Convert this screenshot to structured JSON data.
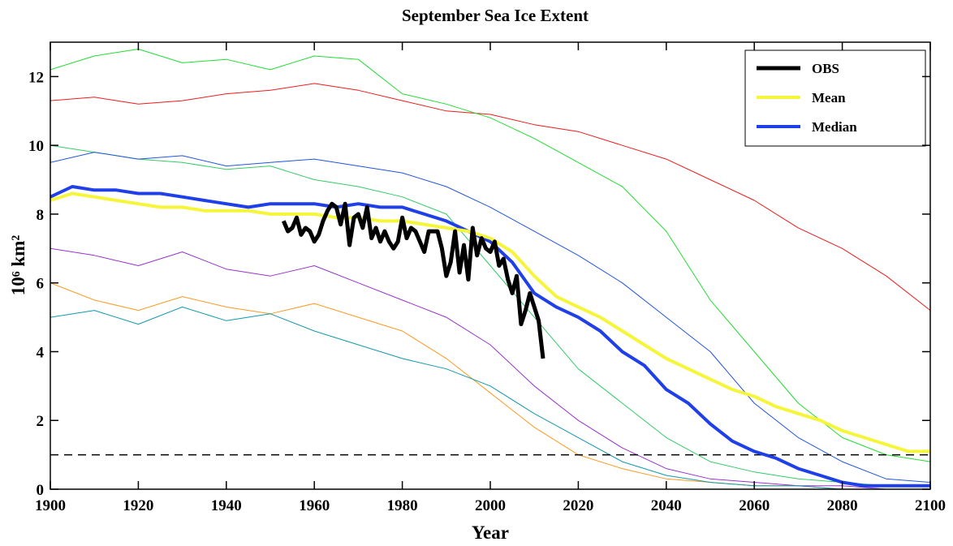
{
  "chart_data": {
    "type": "line",
    "title": "September Sea Ice Extent",
    "x_label": "Year",
    "y_label": "10⁶ km²",
    "xlim": [
      1900,
      2100
    ],
    "xticks": [
      1900,
      1920,
      1940,
      1960,
      1980,
      2000,
      2020,
      2040,
      2060,
      2080,
      2100
    ],
    "ylim": [
      0,
      13
    ],
    "yticks": [
      0,
      2,
      4,
      6,
      8,
      10,
      12
    ],
    "grid": false,
    "legend": "upper right",
    "reference_line": 1,
    "series": [
      {
        "name": "OBS",
        "color": "#000000",
        "linewidth": 5,
        "x": [
          1953,
          1954,
          1955,
          1956,
          1957,
          1958,
          1959,
          1960,
          1961,
          1962,
          1963,
          1964,
          1965,
          1966,
          1967,
          1968,
          1969,
          1970,
          1971,
          1972,
          1973,
          1974,
          1975,
          1976,
          1977,
          1978,
          1979,
          1980,
          1981,
          1982,
          1983,
          1984,
          1985,
          1986,
          1987,
          1988,
          1989,
          1990,
          1991,
          1992,
          1993,
          1994,
          1995,
          1996,
          1997,
          1998,
          1999,
          2000,
          2001,
          2002,
          2003,
          2004,
          2005,
          2006,
          2007,
          2008,
          2009,
          2010,
          2011,
          2012
        ],
        "values": [
          7.8,
          7.5,
          7.6,
          7.9,
          7.4,
          7.6,
          7.5,
          7.2,
          7.4,
          7.8,
          8.1,
          8.3,
          8.2,
          7.7,
          8.3,
          7.1,
          7.9,
          8.0,
          7.6,
          8.2,
          7.3,
          7.6,
          7.2,
          7.5,
          7.2,
          7.0,
          7.2,
          7.9,
          7.3,
          7.6,
          7.5,
          7.2,
          6.9,
          7.5,
          7.5,
          7.5,
          7.0,
          6.2,
          6.6,
          7.5,
          6.3,
          7.1,
          6.1,
          7.6,
          6.8,
          7.3,
          7.0,
          6.9,
          7.2,
          6.5,
          6.7,
          6.1,
          5.7,
          6.2,
          4.8,
          5.2,
          5.7,
          5.3,
          4.9,
          3.8
        ]
      },
      {
        "name": "Mean",
        "color": "#f5f53a",
        "linewidth": 4,
        "x": [
          1900,
          1905,
          1910,
          1915,
          1920,
          1925,
          1930,
          1935,
          1940,
          1945,
          1950,
          1955,
          1960,
          1965,
          1970,
          1975,
          1980,
          1985,
          1990,
          1995,
          2000,
          2005,
          2010,
          2015,
          2020,
          2025,
          2030,
          2035,
          2040,
          2045,
          2050,
          2055,
          2060,
          2065,
          2070,
          2075,
          2080,
          2085,
          2090,
          2095,
          2100
        ],
        "values": [
          8.4,
          8.6,
          8.5,
          8.4,
          8.3,
          8.2,
          8.2,
          8.1,
          8.1,
          8.1,
          8.0,
          8.0,
          8.0,
          7.9,
          7.9,
          7.8,
          7.8,
          7.7,
          7.6,
          7.5,
          7.3,
          6.9,
          6.2,
          5.6,
          5.3,
          5.0,
          4.6,
          4.2,
          3.8,
          3.5,
          3.2,
          2.9,
          2.7,
          2.4,
          2.2,
          2.0,
          1.7,
          1.5,
          1.3,
          1.1,
          1.1
        ]
      },
      {
        "name": "Median",
        "color": "#1f3fe8",
        "linewidth": 4,
        "x": [
          1900,
          1905,
          1910,
          1915,
          1920,
          1925,
          1930,
          1935,
          1940,
          1945,
          1950,
          1955,
          1960,
          1965,
          1970,
          1975,
          1980,
          1985,
          1990,
          1995,
          2000,
          2005,
          2010,
          2015,
          2020,
          2025,
          2030,
          2035,
          2040,
          2045,
          2050,
          2055,
          2060,
          2065,
          2070,
          2075,
          2080,
          2085,
          2090,
          2095,
          2100
        ],
        "values": [
          8.5,
          8.8,
          8.7,
          8.7,
          8.6,
          8.6,
          8.5,
          8.4,
          8.3,
          8.2,
          8.3,
          8.3,
          8.3,
          8.2,
          8.3,
          8.2,
          8.2,
          8.0,
          7.8,
          7.5,
          7.2,
          6.6,
          5.7,
          5.3,
          5.0,
          4.6,
          4.0,
          3.6,
          2.9,
          2.5,
          1.9,
          1.4,
          1.1,
          0.9,
          0.6,
          0.4,
          0.2,
          0.1,
          0.1,
          0.1,
          0.1
        ]
      },
      {
        "color": "#ee1c1c",
        "linewidth": 1,
        "x": [
          1900,
          1910,
          1920,
          1930,
          1940,
          1950,
          1960,
          1970,
          1980,
          1990,
          2000,
          2010,
          2020,
          2030,
          2040,
          2050,
          2060,
          2070,
          2080,
          2090,
          2100
        ],
        "values": [
          11.3,
          11.4,
          11.2,
          11.3,
          11.5,
          11.6,
          11.8,
          11.6,
          11.3,
          11.0,
          10.9,
          10.6,
          10.4,
          10.0,
          9.6,
          9.0,
          8.4,
          7.6,
          7.0,
          6.2,
          5.2
        ]
      },
      {
        "color": "#22dd33",
        "linewidth": 1,
        "x": [
          1900,
          1910,
          1920,
          1930,
          1940,
          1950,
          1960,
          1970,
          1980,
          1990,
          2000,
          2010,
          2020,
          2030,
          2040,
          2050,
          2060,
          2070,
          2080,
          2090,
          2100
        ],
        "values": [
          12.2,
          12.6,
          12.8,
          12.4,
          12.5,
          12.2,
          12.6,
          12.5,
          11.5,
          11.2,
          10.8,
          10.2,
          9.5,
          8.8,
          7.5,
          5.5,
          4.0,
          2.5,
          1.5,
          1.0,
          0.8
        ]
      },
      {
        "color": "#33cc66",
        "linewidth": 1,
        "x": [
          1900,
          1910,
          1920,
          1930,
          1940,
          1950,
          1960,
          1970,
          1980,
          1990,
          2000,
          2010,
          2020,
          2030,
          2040,
          2050,
          2060,
          2070,
          2080,
          2090,
          2100
        ],
        "values": [
          10.0,
          9.8,
          9.6,
          9.5,
          9.3,
          9.4,
          9.0,
          8.8,
          8.5,
          8.0,
          6.5,
          5.0,
          3.5,
          2.5,
          1.5,
          0.8,
          0.5,
          0.3,
          0.2,
          0.1,
          0.1
        ]
      },
      {
        "color": "#2255dd",
        "linewidth": 1,
        "x": [
          1900,
          1910,
          1920,
          1930,
          1940,
          1950,
          1960,
          1970,
          1980,
          1990,
          2000,
          2010,
          2020,
          2030,
          2040,
          2050,
          2060,
          2070,
          2080,
          2090,
          2100
        ],
        "values": [
          9.5,
          9.8,
          9.6,
          9.7,
          9.4,
          9.5,
          9.6,
          9.4,
          9.2,
          8.8,
          8.2,
          7.5,
          6.8,
          6.0,
          5.0,
          4.0,
          2.5,
          1.5,
          0.8,
          0.3,
          0.2
        ]
      },
      {
        "color": "#ff9922",
        "linewidth": 1,
        "x": [
          1900,
          1910,
          1920,
          1930,
          1940,
          1950,
          1960,
          1970,
          1980,
          1990,
          2000,
          2010,
          2020,
          2030,
          2040,
          2050,
          2060,
          2070,
          2080,
          2090,
          2100
        ],
        "values": [
          6.0,
          5.5,
          5.2,
          5.6,
          5.3,
          5.1,
          5.4,
          5.0,
          4.6,
          3.8,
          2.8,
          1.8,
          1.0,
          0.6,
          0.3,
          0.2,
          0.1,
          0.1,
          0.0,
          0.0,
          0.0
        ]
      },
      {
        "color": "#9933cc",
        "linewidth": 1,
        "x": [
          1900,
          1910,
          1920,
          1930,
          1940,
          1950,
          1960,
          1970,
          1980,
          1990,
          2000,
          2010,
          2020,
          2030,
          2040,
          2050,
          2060,
          2070,
          2080,
          2090,
          2100
        ],
        "values": [
          7.0,
          6.8,
          6.5,
          6.9,
          6.4,
          6.2,
          6.5,
          6.0,
          5.5,
          5.0,
          4.2,
          3.0,
          2.0,
          1.2,
          0.6,
          0.3,
          0.2,
          0.1,
          0.1,
          0.0,
          0.0
        ]
      },
      {
        "color": "#1199aa",
        "linewidth": 1,
        "x": [
          1900,
          1910,
          1920,
          1930,
          1940,
          1950,
          1960,
          1970,
          1980,
          1990,
          2000,
          2010,
          2020,
          2030,
          2040,
          2050,
          2060,
          2070,
          2080,
          2090,
          2100
        ],
        "values": [
          5.0,
          5.2,
          4.8,
          5.3,
          4.9,
          5.1,
          4.6,
          4.2,
          3.8,
          3.5,
          3.0,
          2.2,
          1.5,
          0.8,
          0.4,
          0.2,
          0.1,
          0.1,
          0.0,
          0.0,
          0.0
        ]
      }
    ]
  }
}
